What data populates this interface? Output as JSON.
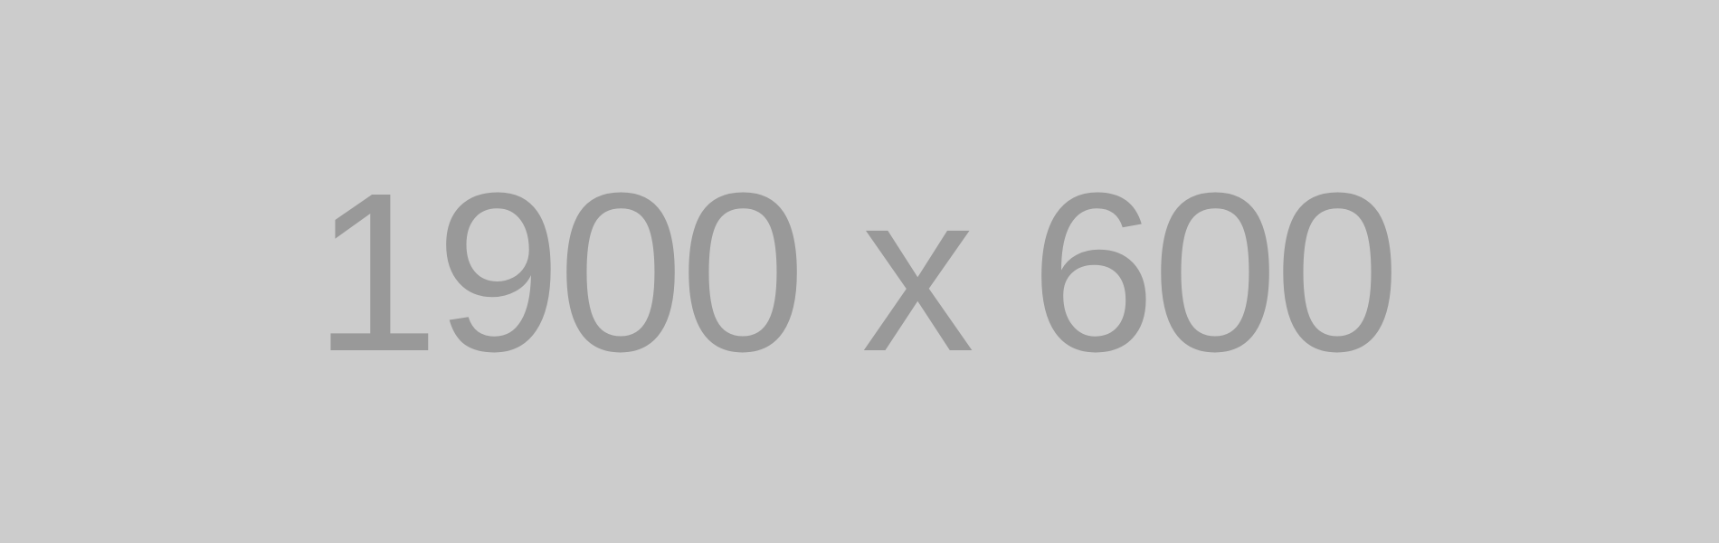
{
  "placeholder": {
    "label": "1900 x 600",
    "colors": {
      "background": "#cccccc",
      "text": "#999999"
    }
  }
}
